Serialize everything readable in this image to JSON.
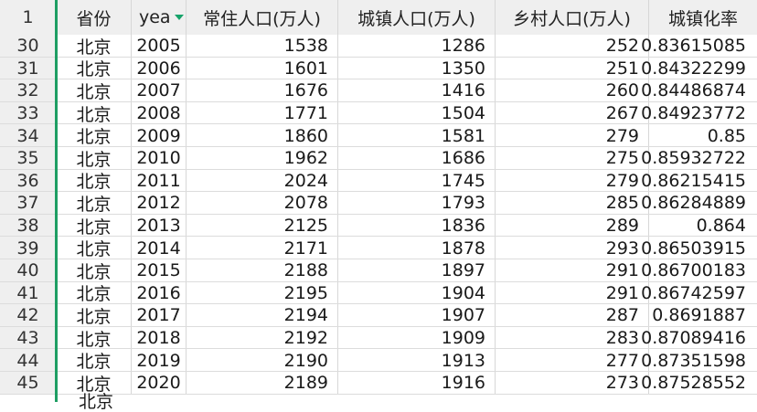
{
  "header": {
    "row_number": "1",
    "columns": [
      "省份",
      "yea",
      "常住人口(万人)",
      "城镇人口(万人)",
      "乡村人口(万人)",
      "城镇化率"
    ]
  },
  "rows": [
    {
      "n": "30",
      "province": "北京",
      "year": "2005",
      "resident": "1538",
      "urban": "1286",
      "rural": "252",
      "rate": "0.83615085"
    },
    {
      "n": "31",
      "province": "北京",
      "year": "2006",
      "resident": "1601",
      "urban": "1350",
      "rural": "251",
      "rate": "0.84322299"
    },
    {
      "n": "32",
      "province": "北京",
      "year": "2007",
      "resident": "1676",
      "urban": "1416",
      "rural": "260",
      "rate": "0.84486874"
    },
    {
      "n": "33",
      "province": "北京",
      "year": "2008",
      "resident": "1771",
      "urban": "1504",
      "rural": "267",
      "rate": "0.84923772"
    },
    {
      "n": "34",
      "province": "北京",
      "year": "2009",
      "resident": "1860",
      "urban": "1581",
      "rural": "279",
      "rate": "0.85"
    },
    {
      "n": "35",
      "province": "北京",
      "year": "2010",
      "resident": "1962",
      "urban": "1686",
      "rural": "275",
      "rate": "0.85932722"
    },
    {
      "n": "36",
      "province": "北京",
      "year": "2011",
      "resident": "2024",
      "urban": "1745",
      "rural": "279",
      "rate": "0.86215415"
    },
    {
      "n": "37",
      "province": "北京",
      "year": "2012",
      "resident": "2078",
      "urban": "1793",
      "rural": "285",
      "rate": "0.86284889"
    },
    {
      "n": "38",
      "province": "北京",
      "year": "2013",
      "resident": "2125",
      "urban": "1836",
      "rural": "289",
      "rate": "0.864"
    },
    {
      "n": "39",
      "province": "北京",
      "year": "2014",
      "resident": "2171",
      "urban": "1878",
      "rural": "293",
      "rate": "0.86503915"
    },
    {
      "n": "40",
      "province": "北京",
      "year": "2015",
      "resident": "2188",
      "urban": "1897",
      "rural": "291",
      "rate": "0.86700183"
    },
    {
      "n": "41",
      "province": "北京",
      "year": "2016",
      "resident": "2195",
      "urban": "1904",
      "rural": "291",
      "rate": "0.86742597"
    },
    {
      "n": "42",
      "province": "北京",
      "year": "2017",
      "resident": "2194",
      "urban": "1907",
      "rural": "287",
      "rate": "0.8691887"
    },
    {
      "n": "43",
      "province": "北京",
      "year": "2018",
      "resident": "2192",
      "urban": "1909",
      "rural": "283",
      "rate": "0.87089416"
    },
    {
      "n": "44",
      "province": "北京",
      "year": "2019",
      "resident": "2190",
      "urban": "1913",
      "rural": "277",
      "rate": "0.87351598"
    },
    {
      "n": "45",
      "province": "北京",
      "year": "2020",
      "resident": "2189",
      "urban": "1916",
      "rural": "273",
      "rate": "0.87528552"
    }
  ],
  "partial_next_row": {
    "province": "北京"
  },
  "colors": {
    "freeze_line": "#1e9e63",
    "filter_icon": "#17a36a",
    "header_bg": "#efefef"
  }
}
